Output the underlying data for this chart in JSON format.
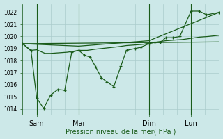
{
  "xlabel": "Pression niveau de la mer( hPa )",
  "ylim": [
    1013.5,
    1022.7
  ],
  "xlim": [
    0,
    7.0
  ],
  "yticks": [
    1014,
    1015,
    1016,
    1017,
    1018,
    1019,
    1020,
    1021,
    1022
  ],
  "ytick_labels": [
    "1014",
    "1015",
    "1016",
    "1017",
    "1018",
    "1019",
    "1020",
    "1021",
    "1022"
  ],
  "bg_color": "#cce8e8",
  "grid_color": "#aacccc",
  "line_color": "#1a5c1a",
  "xtick_positions": [
    0.5,
    2.0,
    4.5,
    6.0
  ],
  "xtick_labels": [
    "Sam",
    "Mar",
    "Dim",
    "Lun"
  ],
  "vline_positions": [
    0.5,
    2.0,
    4.5,
    6.0
  ],
  "n_vgrid": 14,
  "series1_x": [
    0.0,
    0.3,
    0.5,
    0.8,
    1.0,
    1.3,
    1.6,
    2.0,
    2.3,
    2.6,
    3.0,
    3.4,
    3.7,
    4.0,
    4.3,
    4.5,
    4.8,
    5.1,
    5.4,
    5.7,
    6.0,
    6.3,
    6.6,
    7.0
  ],
  "series1_y": [
    1019.4,
    1018.85,
    1018.9,
    1018.6,
    1018.6,
    1018.65,
    1018.7,
    1018.85,
    1018.85,
    1018.95,
    1019.05,
    1019.15,
    1019.25,
    1019.3,
    1019.35,
    1019.45,
    1019.55,
    1019.65,
    1019.7,
    1019.75,
    1019.85,
    1019.95,
    1020.0,
    1020.1
  ],
  "series2_x": [
    0.0,
    0.3,
    0.5,
    0.75,
    1.0,
    1.25,
    1.5,
    1.75,
    2.0,
    2.2,
    2.4,
    2.6,
    2.8,
    3.0,
    3.25,
    3.5,
    3.7,
    4.0,
    4.2,
    4.5,
    4.7,
    4.9,
    5.1,
    5.35,
    5.6,
    6.0,
    6.3,
    6.55,
    7.0
  ],
  "series2_y": [
    1019.4,
    1018.8,
    1014.9,
    1014.05,
    1015.15,
    1015.6,
    1015.55,
    1018.7,
    1018.85,
    1018.45,
    1018.3,
    1017.5,
    1016.6,
    1016.25,
    1015.85,
    1017.55,
    1018.85,
    1019.0,
    1019.1,
    1019.4,
    1019.5,
    1019.5,
    1019.9,
    1019.9,
    1020.0,
    1022.1,
    1022.1,
    1021.8,
    1022.0
  ],
  "series3_x": [
    0.0,
    2.0,
    4.5,
    7.0
  ],
  "series3_y": [
    1019.4,
    1019.2,
    1019.65,
    1022.0
  ],
  "series4_x": [
    0.0,
    7.0
  ],
  "series4_y": [
    1019.4,
    1019.55
  ]
}
